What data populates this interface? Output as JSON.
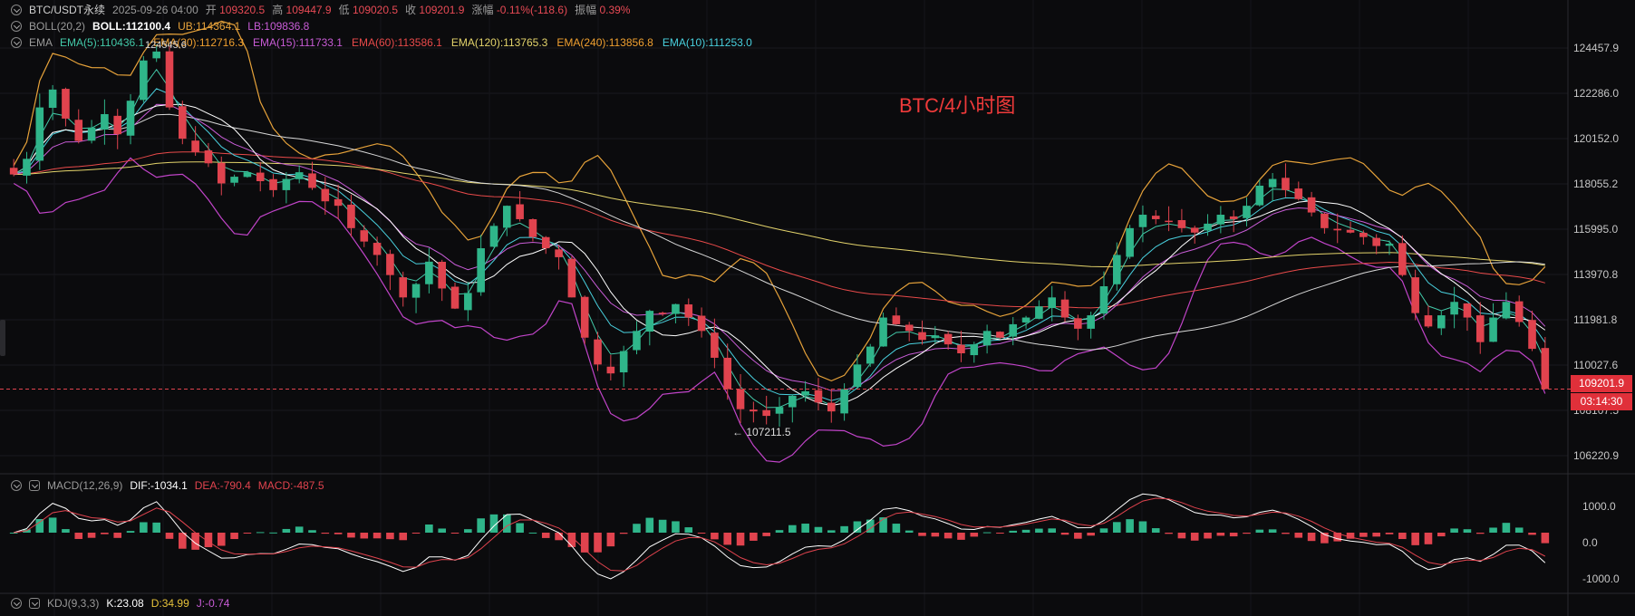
{
  "header": {
    "symbol": "BTC/USDT永续",
    "datetime": "2025-09-26 04:00",
    "open_label": "开",
    "open": "109320.5",
    "high_label": "高",
    "high": "109447.9",
    "low_label": "低",
    "low": "109020.5",
    "close_label": "收",
    "close": "109201.9",
    "change_label": "涨幅",
    "change": "-0.11%(-118.6)",
    "amp_label": "振幅",
    "amp": "0.39%"
  },
  "boll": {
    "name": "BOLL(20,2)",
    "mid": "BOLL:112100.4",
    "ub": "UB:114364.1",
    "lb": "LB:109836.8"
  },
  "ema": {
    "name": "EMA",
    "items": [
      {
        "label": "EMA(5):110436.1",
        "color": "#43c9a9"
      },
      {
        "label": "EMA(30):112716.3",
        "color": "#f0a030"
      },
      {
        "label": "EMA(15):111733.1",
        "color": "#c85cd6"
      },
      {
        "label": "EMA(60):113586.1",
        "color": "#e84a4a"
      },
      {
        "label": "EMA(120):113765.3",
        "color": "#e3d36b"
      },
      {
        "label": "EMA(240):113856.8",
        "color": "#f0a030"
      },
      {
        "label": "EMA(10):111253.0",
        "color": "#49d0de"
      }
    ],
    "overlap_label": "124545.6"
  },
  "annotation": "BTC/4小时图",
  "low_marker": "107211.5",
  "price_tag": "109201.9",
  "countdown": "03:14:30",
  "price_axis": [
    "124457.9",
    "122286.0",
    "120152.0",
    "118055.2",
    "115995.0",
    "113970.8",
    "111981.8",
    "110027.6",
    "108107.5",
    "106220.9"
  ],
  "macd": {
    "name": "MACD(12,26,9)",
    "dif": "DIF:-1034.1",
    "dea": "DEA:-790.4",
    "macd": "MACD:-487.5",
    "axis": [
      "1000.0",
      "0.0",
      "-1000.0"
    ]
  },
  "kdj": {
    "name": "KDJ(9,3,3)",
    "k": "K:23.08",
    "d": "D:34.99",
    "j": "J:-0.74"
  },
  "colors": {
    "up": "#2fb58a",
    "down": "#e0434e",
    "boll_upper": "#e6a23a",
    "boll_lower": "#c044c8",
    "bg": "#0b0b0d"
  },
  "chart_data": {
    "type": "line",
    "title": "BTC/4小时图",
    "y_range": [
      106220.9,
      124457.9
    ],
    "close_series": [
      118800,
      119500,
      121800,
      122600,
      121300,
      120300,
      120900,
      121500,
      120600,
      122100,
      123900,
      124300,
      121800,
      120400,
      119800,
      119300,
      118400,
      118700,
      118900,
      118500,
      118100,
      118600,
      118900,
      118200,
      117600,
      117400,
      116400,
      115800,
      115200,
      114300,
      113300,
      113900,
      114900,
      113700,
      112800,
      113500,
      115500,
      116500,
      117400,
      116800,
      116000,
      115500,
      115100,
      113300,
      111500,
      110300,
      109900,
      110900,
      111800,
      112700,
      112600,
      113000,
      112400,
      111800,
      110600,
      109200,
      108300,
      108200,
      108000,
      108400,
      108900,
      109100,
      108600,
      108200,
      109200,
      110300,
      111100,
      112400,
      112100,
      111800,
      111400,
      111600,
      111200,
      110800,
      111200,
      111800,
      111500,
      112100,
      112400,
      112900,
      113300,
      112400,
      111900,
      112500,
      113800,
      115200,
      116400,
      117000,
      116800,
      116700,
      116400,
      116200,
      116600,
      117000,
      116800,
      117400,
      118300,
      118600,
      118100,
      117700,
      117100,
      116400,
      116300,
      116200,
      116000,
      115600,
      115700,
      114300,
      112600,
      112000,
      112500,
      113100,
      112400,
      111300,
      112400,
      113100,
      112200,
      111000,
      109200
    ],
    "macd_axis": [
      -1000,
      0,
      1000
    ]
  }
}
